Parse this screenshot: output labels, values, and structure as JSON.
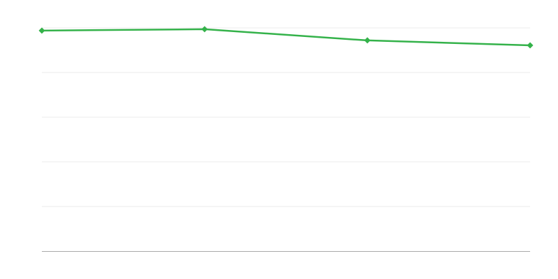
{
  "chart_data": {
    "type": "line",
    "title": "",
    "xlabel": "",
    "ylabel": "",
    "x": [
      0,
      1,
      2,
      3
    ],
    "series": [
      {
        "values": [
          4.94,
          4.97,
          4.72,
          4.61
        ],
        "color": "#34b24a"
      }
    ],
    "ylim": [
      0,
      5
    ],
    "xlim": [
      0,
      3
    ],
    "y_gridlines": [
      1,
      2,
      3,
      4,
      5
    ],
    "grid": true,
    "grid_color": "#ebebeb",
    "axis_color": "#aaaaaa",
    "markers": "diamond",
    "legend": "none"
  }
}
